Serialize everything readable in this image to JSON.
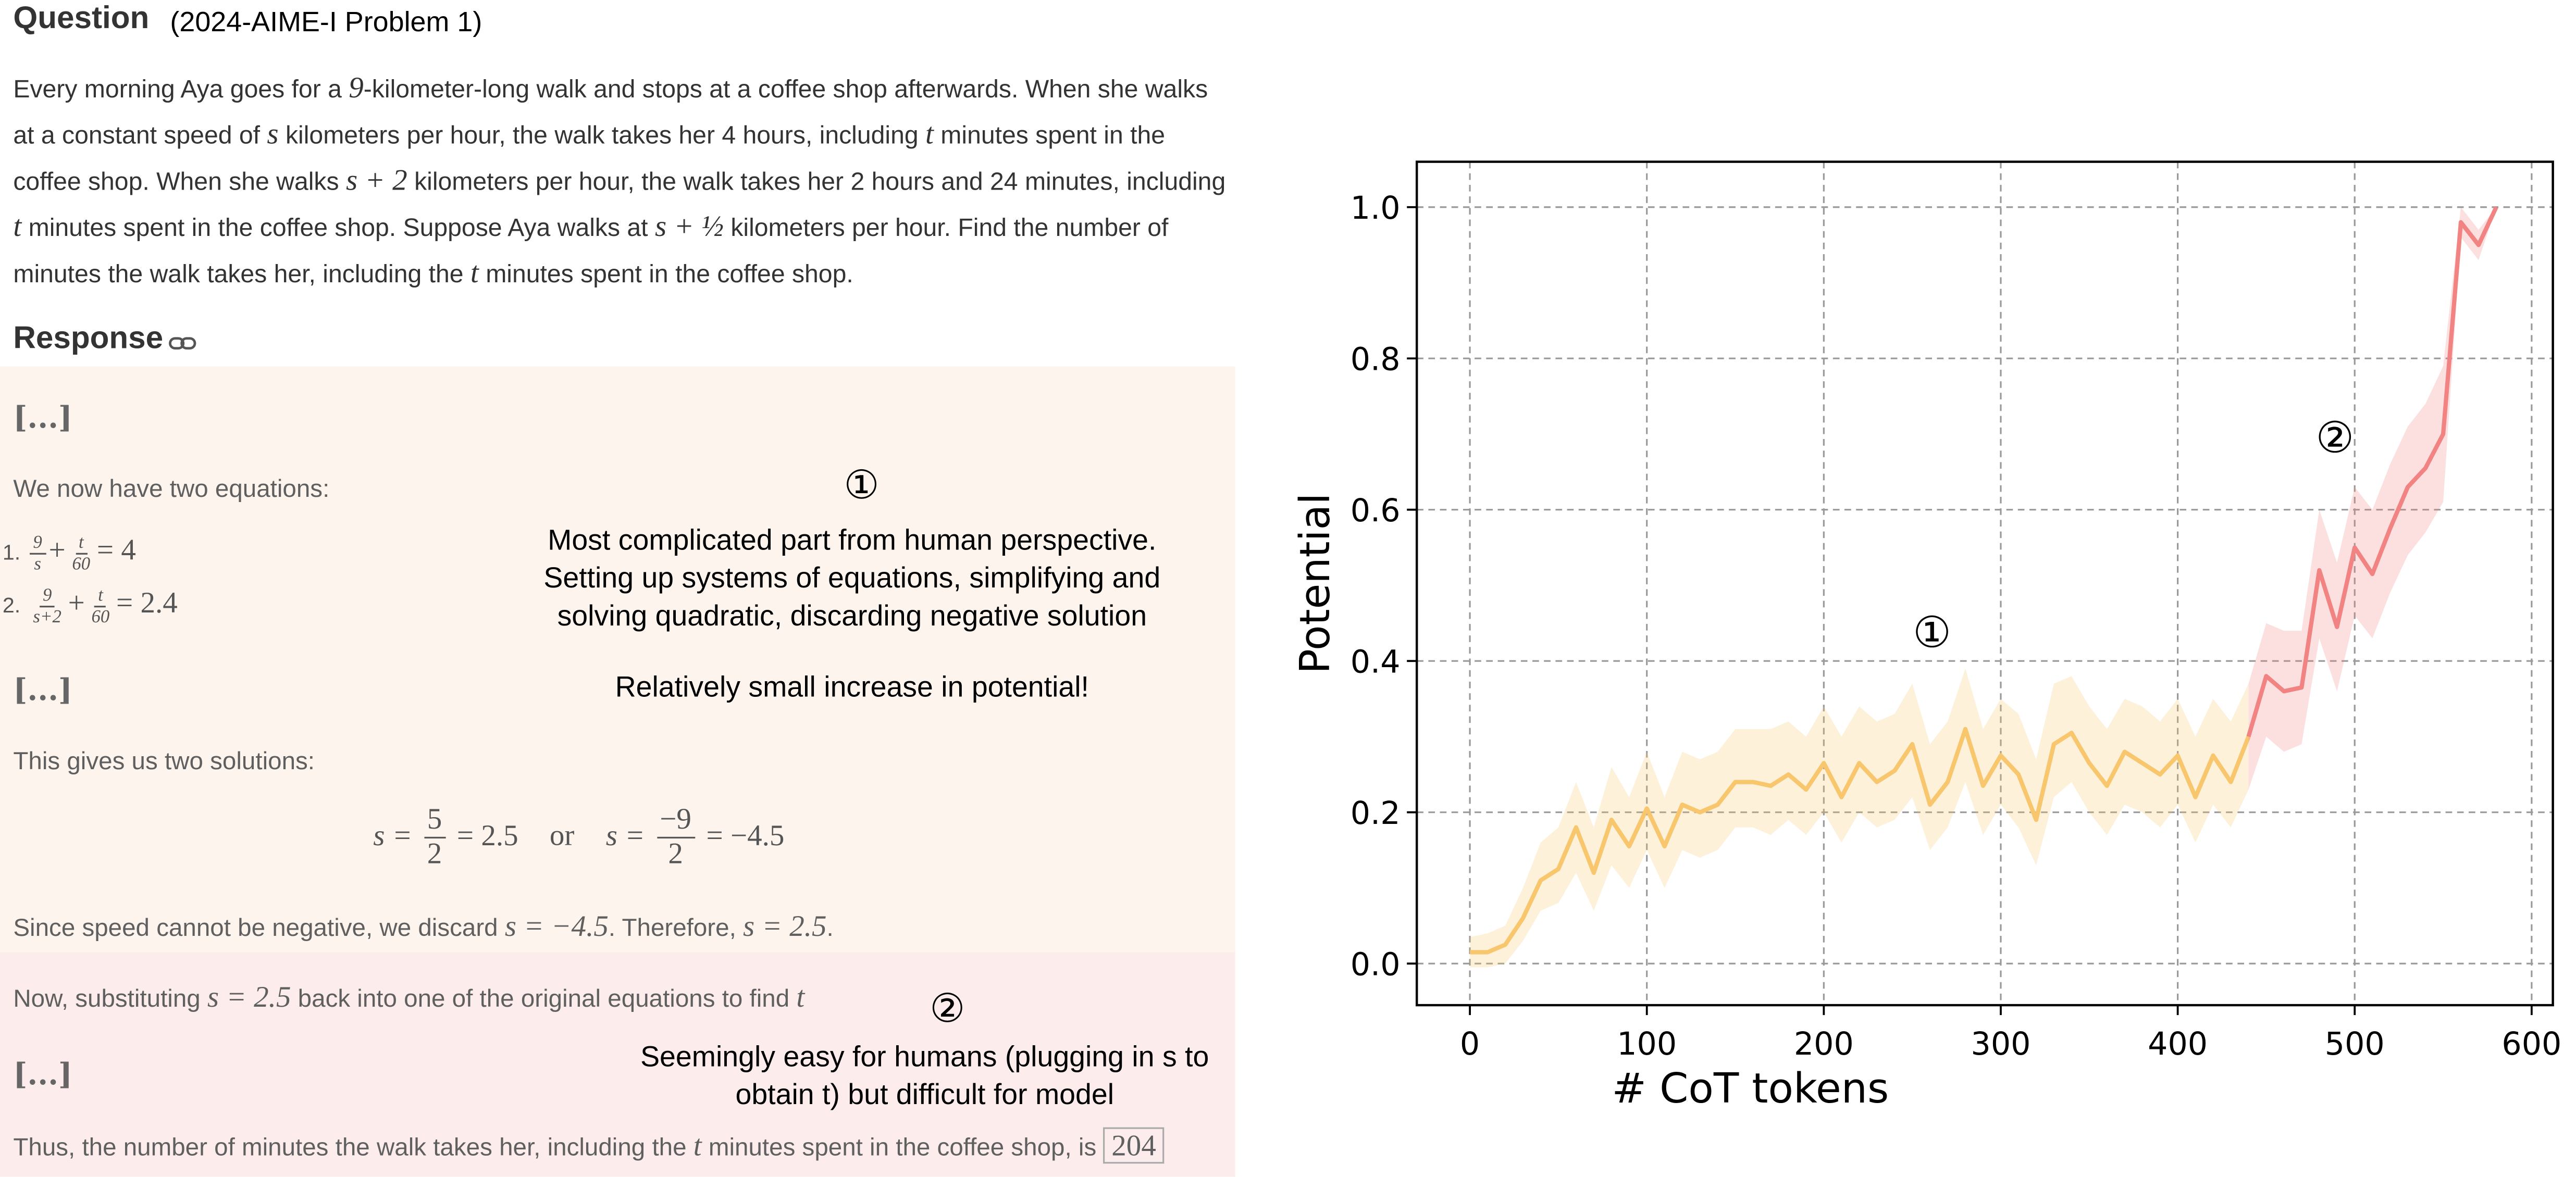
{
  "question": {
    "heading": "Question",
    "source": "(2024-AIME-I Problem 1)",
    "text": [
      "Every morning Aya goes for a ",
      "9",
      "-kilometer-long walk and stops at a coffee shop afterwards. When she walks at a constant speed of ",
      "s",
      " kilometers per hour, the walk takes her 4 hours, including ",
      "t",
      " minutes spent in the coffee shop. When she walks ",
      "s + 2",
      " kilometers per hour, the walk takes her 2 hours and 24 minutes, including ",
      "t",
      " minutes spent in the coffee shop. Suppose Aya walks at ",
      "s + ½",
      " kilometers per hour. Find the number of minutes the walk takes her, including the ",
      "t",
      " minutes spent in the coffee shop."
    ]
  },
  "response": {
    "heading": "Response",
    "gaps": [
      "[...]",
      "[...]",
      "[...]"
    ],
    "intro": "We now have two equations:",
    "equations": [
      [
        "9",
        "s",
        "+",
        "t",
        "60",
        "= 4"
      ],
      [
        "9",
        "s+2",
        "+",
        "t",
        "60",
        "= 2.4"
      ]
    ],
    "solutions_intro": "This gives us two solutions:",
    "solutions": [
      "s =",
      "5",
      "2",
      "= 2.5",
      "or",
      "s =",
      "−9",
      "2",
      "= −4.5"
    ],
    "discard": [
      "Since speed cannot be negative, we discard ",
      "s = −4.5",
      ". Therefore, ",
      "s = 2.5",
      "."
    ],
    "substitute": [
      "Now, substituting ",
      "s = 2.5",
      " back into one of the original equations to find ",
      "t"
    ],
    "conclusion": [
      "Thus, the number of minutes the walk takes her, including the ",
      "t",
      " minutes spent in the coffee shop, is ",
      "204"
    ]
  },
  "notes": [
    {
      "marker": "①",
      "text": "Most complicated part from human perspective. Setting up systems of equations, simplifying and solving quadratic, discarding negative solution",
      "remark": "Relatively small increase in potential!"
    },
    {
      "marker": "②",
      "text": "Seemingly easy for humans (plugging in s to obtain t) but difficult for model"
    }
  ],
  "chart_data": {
    "type": "line",
    "xlabel": "# CoT tokens",
    "ylabel": "Potential",
    "xlim": [
      -30,
      612
    ],
    "ylim": [
      -0.055,
      1.06
    ],
    "xticks": [
      0,
      100,
      200,
      300,
      400,
      500,
      600
    ],
    "yticks": [
      {
        "value": 0,
        "label": "0.0"
      },
      0.2,
      0.4,
      0.6,
      0.8,
      {
        "value": 1,
        "label": "1.0"
      }
    ],
    "grid": true,
    "annotations": [
      "①",
      "②"
    ],
    "series": [
      {
        "color": "#f8c66c",
        "x": [
          0,
          10,
          20,
          30,
          40,
          50,
          60,
          70,
          80,
          90,
          100,
          110,
          120,
          130,
          140,
          150,
          160,
          170,
          180,
          190,
          200,
          210,
          220,
          230,
          240,
          250,
          260,
          270,
          280,
          290,
          300,
          310,
          320,
          330,
          340,
          350,
          360,
          370,
          380,
          390,
          400,
          410,
          420,
          430,
          440
        ],
        "values": [
          0.015,
          0.015,
          0.025,
          0.06,
          0.11,
          0.125,
          0.18,
          0.12,
          0.19,
          0.155,
          0.205,
          0.155,
          0.21,
          0.2,
          0.21,
          0.24,
          0.24,
          0.235,
          0.25,
          0.23,
          0.265,
          0.22,
          0.265,
          0.24,
          0.255,
          0.29,
          0.21,
          0.24,
          0.31,
          0.235,
          0.275,
          0.25,
          0.19,
          0.29,
          0.305,
          0.265,
          0.235,
          0.28,
          0.265,
          0.25,
          0.275,
          0.22,
          0.275,
          0.24,
          0.3
        ],
        "lower": [
          -0.005,
          -0.005,
          0.0,
          0.03,
          0.07,
          0.08,
          0.12,
          0.07,
          0.13,
          0.1,
          0.15,
          0.1,
          0.15,
          0.14,
          0.15,
          0.18,
          0.18,
          0.17,
          0.19,
          0.17,
          0.2,
          0.16,
          0.2,
          0.18,
          0.19,
          0.22,
          0.15,
          0.18,
          0.24,
          0.17,
          0.21,
          0.18,
          0.13,
          0.22,
          0.24,
          0.2,
          0.17,
          0.21,
          0.2,
          0.18,
          0.21,
          0.16,
          0.21,
          0.18,
          0.23
        ],
        "upper": [
          0.035,
          0.04,
          0.05,
          0.1,
          0.16,
          0.18,
          0.24,
          0.18,
          0.26,
          0.22,
          0.28,
          0.22,
          0.28,
          0.27,
          0.28,
          0.31,
          0.31,
          0.31,
          0.32,
          0.3,
          0.34,
          0.3,
          0.34,
          0.32,
          0.33,
          0.37,
          0.29,
          0.32,
          0.39,
          0.31,
          0.35,
          0.33,
          0.27,
          0.37,
          0.38,
          0.34,
          0.31,
          0.35,
          0.34,
          0.32,
          0.35,
          0.3,
          0.35,
          0.32,
          0.37
        ]
      },
      {
        "color": "#f28383",
        "x": [
          440,
          450,
          460,
          470,
          480,
          490,
          500,
          510,
          520,
          530,
          540,
          550,
          560,
          570,
          580
        ],
        "values": [
          0.3,
          0.38,
          0.36,
          0.365,
          0.52,
          0.445,
          0.55,
          0.515,
          0.575,
          0.63,
          0.655,
          0.7,
          0.98,
          0.95,
          1.0
        ],
        "lower": [
          0.23,
          0.3,
          0.28,
          0.29,
          0.43,
          0.36,
          0.46,
          0.43,
          0.49,
          0.54,
          0.57,
          0.61,
          0.96,
          0.93,
          1.0
        ],
        "upper": [
          0.37,
          0.45,
          0.44,
          0.44,
          0.6,
          0.53,
          0.63,
          0.6,
          0.66,
          0.71,
          0.74,
          0.79,
          1.0,
          0.97,
          1.0
        ]
      }
    ]
  }
}
